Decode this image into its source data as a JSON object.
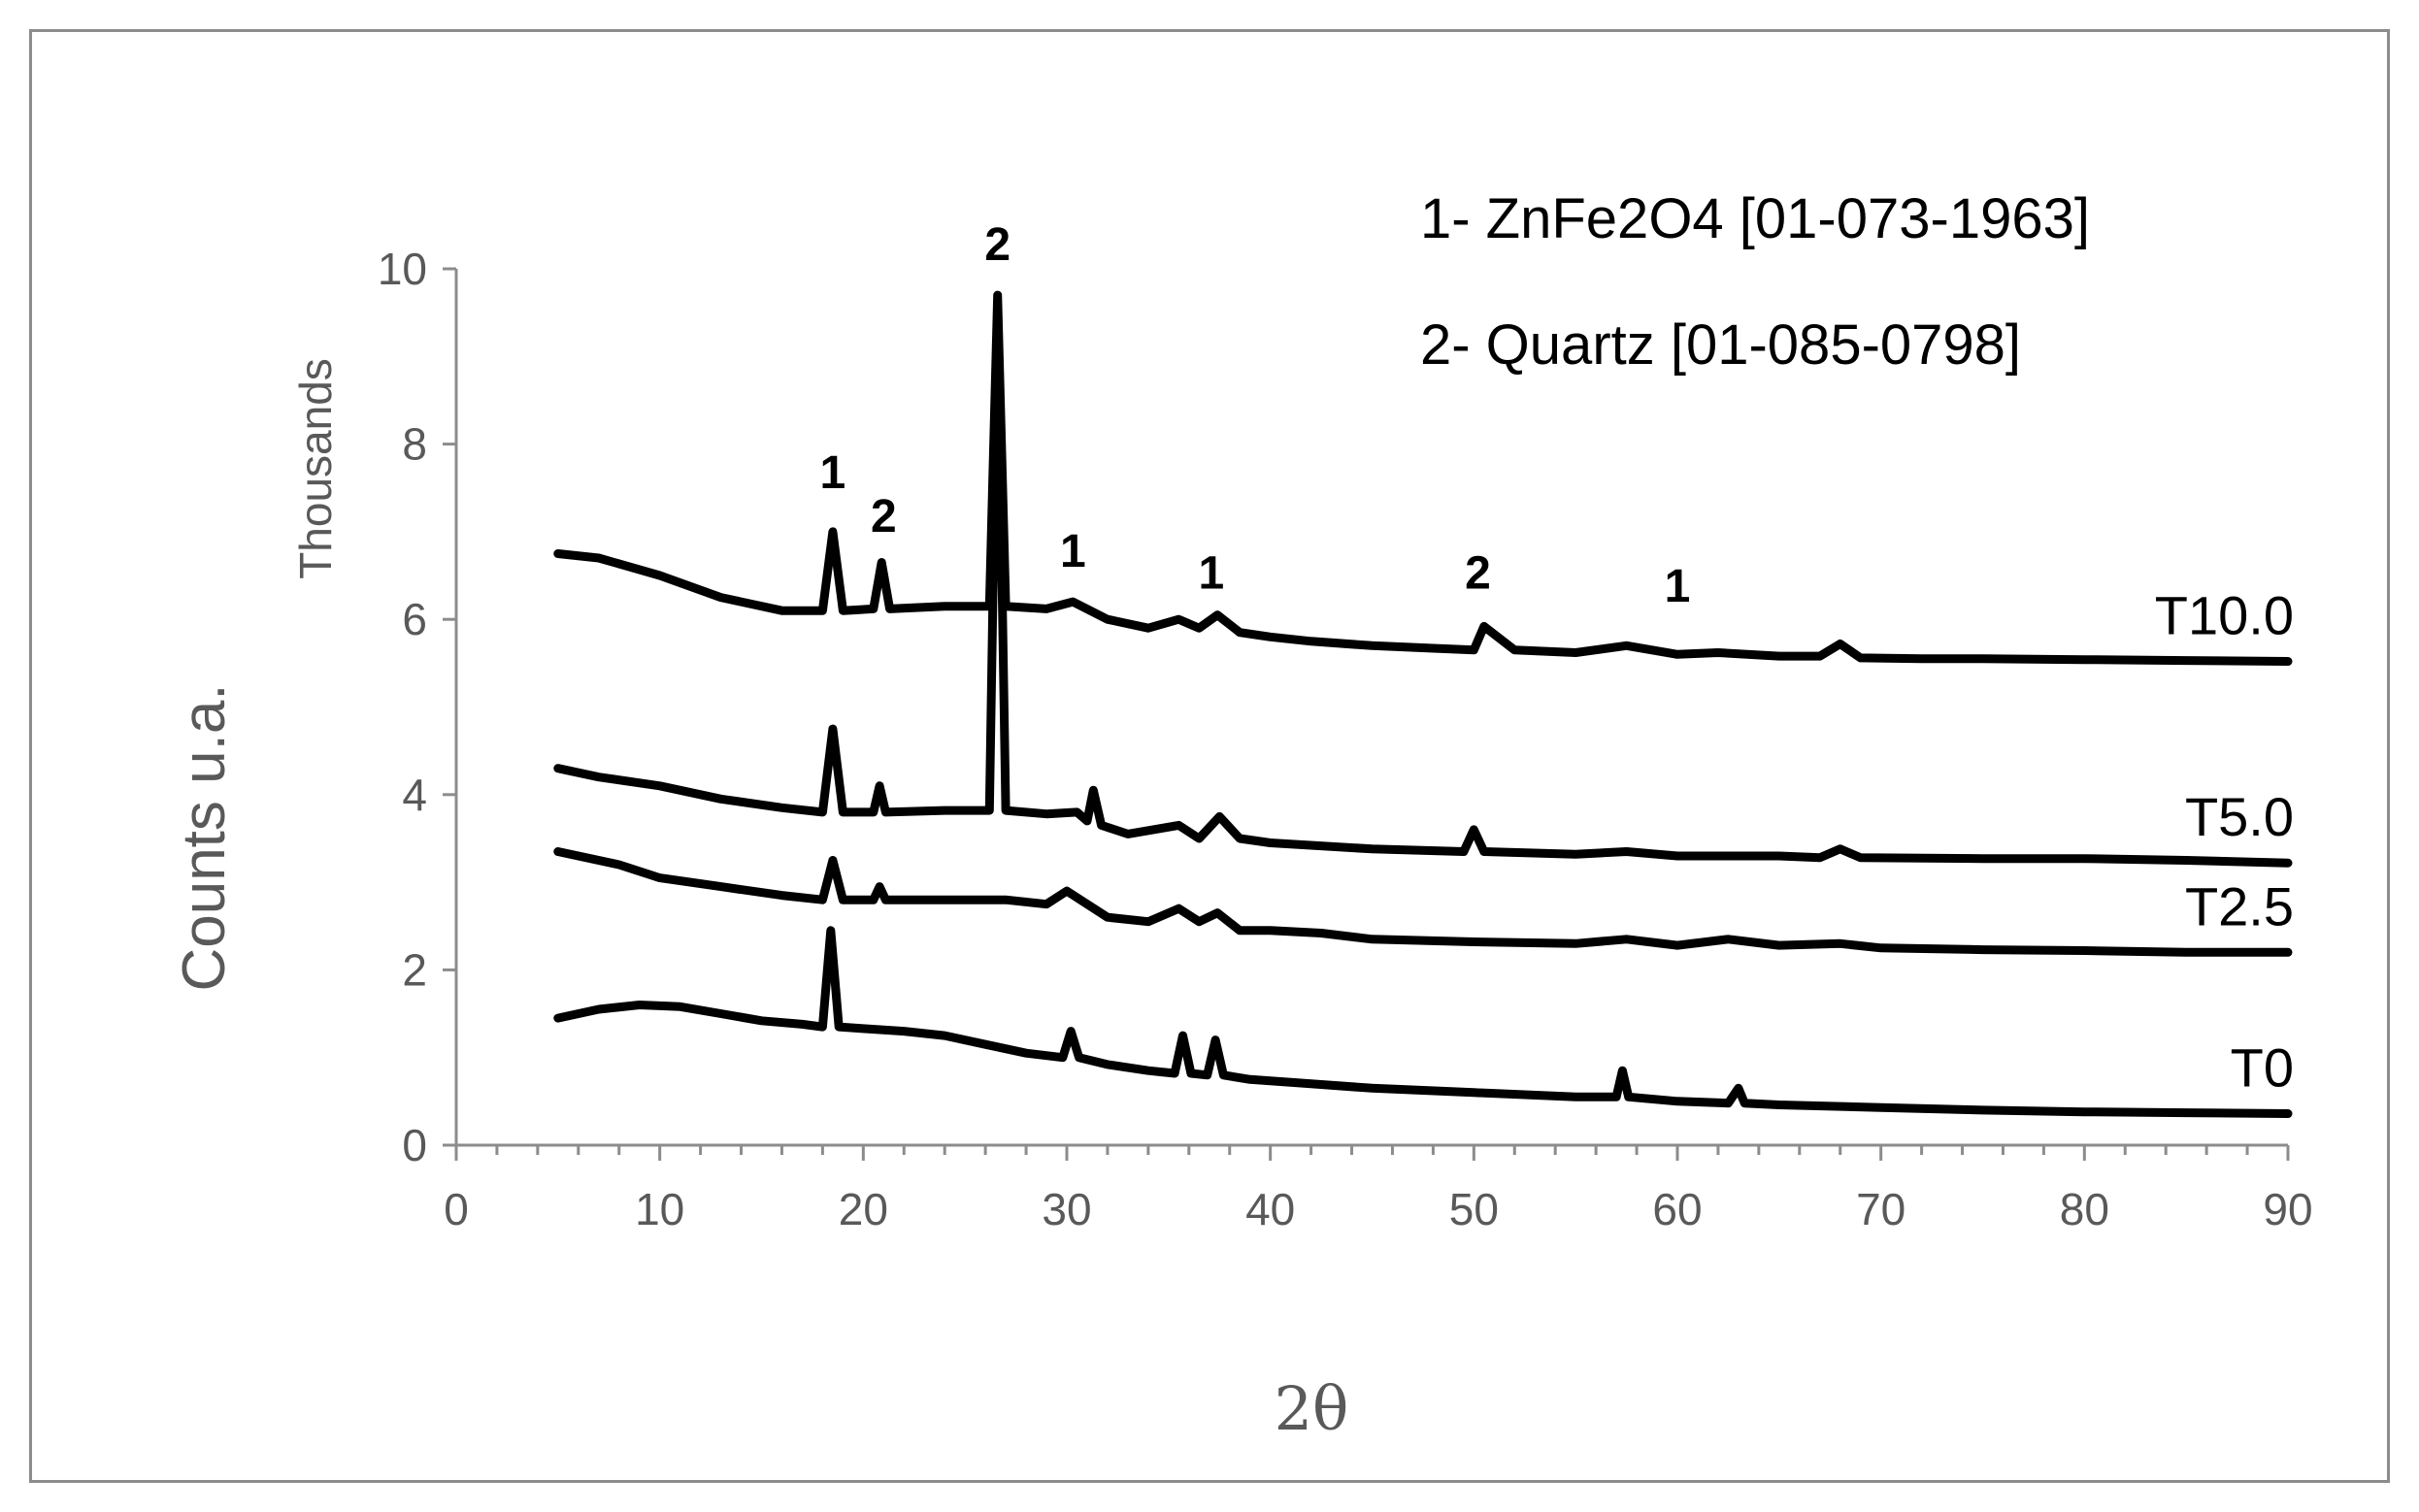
{
  "chart_data": {
    "type": "line",
    "title": "",
    "xlabel": "2θ",
    "ylabel": "Counts u.a.",
    "yunit_label": "Thousands",
    "xlim": [
      0,
      90
    ],
    "ylim": [
      0,
      10
    ],
    "xticks": [
      "0",
      "10",
      "20",
      "30",
      "40",
      "50",
      "60",
      "70",
      "80",
      "90"
    ],
    "yticks": [
      "0",
      "2",
      "4",
      "6",
      "8",
      "10"
    ],
    "grid": false,
    "legend_text": [
      "1- ZnFe2O4 [01-073-1963]",
      "2- Quartz [01-085-0798]"
    ],
    "colors": {
      "series": "#000000",
      "axis": "#8c8c8c",
      "text": "#595959"
    },
    "series": [
      {
        "name": "T10.0",
        "x": [
          5,
          7,
          10,
          13,
          16,
          18,
          18.5,
          19,
          20.5,
          20.9,
          21.3,
          24,
          26.2,
          26.6,
          27,
          29,
          30.3,
          32,
          34,
          35.5,
          36.5,
          37.4,
          38.5,
          40,
          42,
          45,
          48,
          50,
          50.5,
          52,
          55,
          57.5,
          60,
          62,
          65,
          67,
          68,
          69,
          72,
          75,
          80,
          85,
          90
        ],
        "y": [
          6.75,
          6.7,
          6.5,
          6.25,
          6.1,
          6.1,
          7.0,
          6.1,
          6.12,
          6.65,
          6.12,
          6.15,
          6.15,
          9.7,
          6.15,
          6.12,
          6.2,
          6.0,
          5.9,
          6.0,
          5.9,
          6.05,
          5.85,
          5.8,
          5.75,
          5.7,
          5.67,
          5.65,
          5.92,
          5.65,
          5.62,
          5.7,
          5.6,
          5.62,
          5.58,
          5.58,
          5.72,
          5.56,
          5.55,
          5.55,
          5.54,
          5.53,
          5.52
        ]
      },
      {
        "name": "T5.0",
        "x": [
          5,
          7,
          10,
          13,
          16,
          18,
          18.5,
          19,
          20.5,
          20.8,
          21.1,
          24,
          26.2,
          26.6,
          27,
          29,
          30.5,
          31.0,
          31.3,
          31.7,
          33,
          35.5,
          36.5,
          37.5,
          38.5,
          40,
          45,
          49.5,
          50,
          50.5,
          55,
          57.5,
          60,
          65,
          67,
          68,
          69,
          75,
          80,
          85,
          90
        ],
        "y": [
          4.3,
          4.2,
          4.1,
          3.95,
          3.85,
          3.8,
          4.75,
          3.8,
          3.8,
          4.1,
          3.8,
          3.82,
          3.82,
          9.5,
          3.82,
          3.78,
          3.8,
          3.7,
          4.05,
          3.65,
          3.55,
          3.65,
          3.5,
          3.75,
          3.5,
          3.45,
          3.38,
          3.35,
          3.6,
          3.35,
          3.32,
          3.35,
          3.3,
          3.3,
          3.28,
          3.38,
          3.28,
          3.27,
          3.27,
          3.25,
          3.22
        ]
      },
      {
        "name": "T2.5",
        "x": [
          5,
          8,
          10,
          13,
          16,
          18,
          18.5,
          19,
          20.5,
          20.8,
          21.1,
          24,
          26.2,
          26.6,
          27,
          29,
          30,
          32,
          34,
          35.5,
          36.5,
          37.4,
          38.5,
          40,
          42.5,
          45,
          50,
          55,
          57.5,
          60,
          62.5,
          65,
          68,
          70,
          75,
          80,
          85,
          90
        ],
        "y": [
          3.35,
          3.2,
          3.05,
          2.95,
          2.85,
          2.8,
          3.25,
          2.8,
          2.8,
          2.95,
          2.8,
          2.8,
          2.8,
          2.8,
          2.8,
          2.75,
          2.9,
          2.6,
          2.55,
          2.7,
          2.55,
          2.65,
          2.45,
          2.45,
          2.42,
          2.35,
          2.32,
          2.3,
          2.35,
          2.28,
          2.35,
          2.28,
          2.3,
          2.25,
          2.23,
          2.22,
          2.2,
          2.2
        ]
      },
      {
        "name": "T0",
        "x": [
          5,
          7,
          9,
          11,
          13,
          15,
          17,
          18,
          18.4,
          18.8,
          20,
          22,
          24,
          26,
          28,
          29.8,
          30.2,
          30.6,
          32,
          34,
          35.3,
          35.7,
          36.1,
          36.9,
          37.3,
          37.7,
          39,
          42,
          45,
          50,
          55,
          57,
          57.3,
          57.6,
          60,
          62.5,
          63,
          63.3,
          65,
          70,
          75,
          80,
          85,
          90
        ],
        "y": [
          1.45,
          1.55,
          1.6,
          1.58,
          1.5,
          1.42,
          1.38,
          1.35,
          2.45,
          1.35,
          1.33,
          1.3,
          1.25,
          1.15,
          1.05,
          1.0,
          1.3,
          1.0,
          0.92,
          0.85,
          0.82,
          1.25,
          0.82,
          0.8,
          1.2,
          0.8,
          0.75,
          0.7,
          0.65,
          0.6,
          0.55,
          0.55,
          0.85,
          0.55,
          0.5,
          0.48,
          0.65,
          0.48,
          0.46,
          0.43,
          0.4,
          0.38,
          0.37,
          0.36
        ]
      }
    ],
    "peak_labels": [
      {
        "text": "1",
        "x": 18.5,
        "y": 7.5
      },
      {
        "text": "2",
        "x": 21.0,
        "y": 7.0
      },
      {
        "text": "2",
        "x": 26.6,
        "y": 10.1
      },
      {
        "text": "1",
        "x": 30.3,
        "y": 6.6
      },
      {
        "text": "1",
        "x": 37.1,
        "y": 6.35
      },
      {
        "text": "2",
        "x": 50.2,
        "y": 6.35
      },
      {
        "text": "1",
        "x": 60.0,
        "y": 6.2
      }
    ]
  }
}
